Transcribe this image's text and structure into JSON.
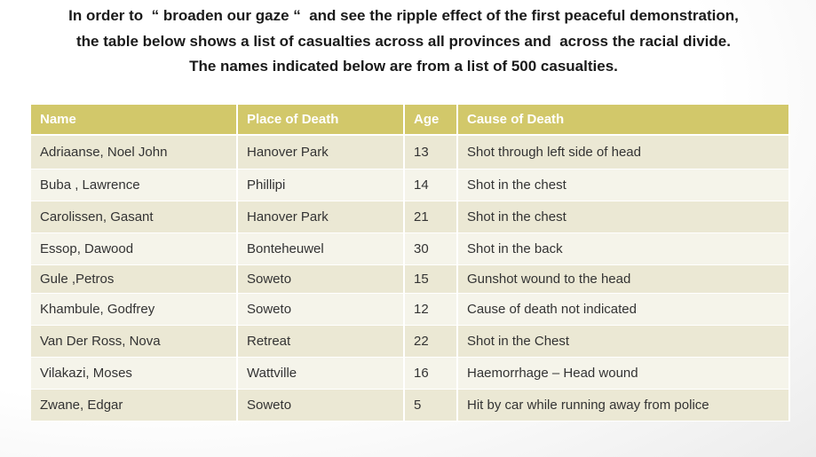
{
  "header": {
    "lines": [
      "In order to  “ broaden our gaze “  and see the ripple effect of the first peaceful demonstration,",
      "the table below shows a list of casualties across all provinces and  across the racial divide.",
      "The names indicated below are from a list of 500 casualties."
    ]
  },
  "table": {
    "columns": [
      "Name",
      "Place of Death",
      "Age",
      "Cause of Death"
    ],
    "rows": [
      [
        "Adriaanse, Noel John",
        "Hanover Park",
        13,
        "Shot through left side of head"
      ],
      [
        "Buba , Lawrence",
        "Phillipi",
        14,
        "Shot in the chest"
      ],
      [
        "Carolissen, Gasant",
        "Hanover Park",
        21,
        "Shot in the chest"
      ],
      [
        "Essop, Dawood",
        "Bonteheuwel",
        30,
        "Shot in the back"
      ],
      [
        "Gule ,Petros",
        "Soweto",
        15,
        "Gunshot wound to the head"
      ],
      [
        "Khambule, Godfrey",
        "Soweto",
        12,
        "Cause of death not indicated"
      ],
      [
        "Van Der Ross, Nova",
        "Retreat",
        22,
        "Shot in the Chest"
      ],
      [
        "Vilakazi, Moses",
        "Wattville",
        16,
        "Haemorrhage – Head wound"
      ],
      [
        "Zwane, Edgar",
        "Soweto",
        5,
        "Hit by car while running away from police"
      ]
    ]
  }
}
